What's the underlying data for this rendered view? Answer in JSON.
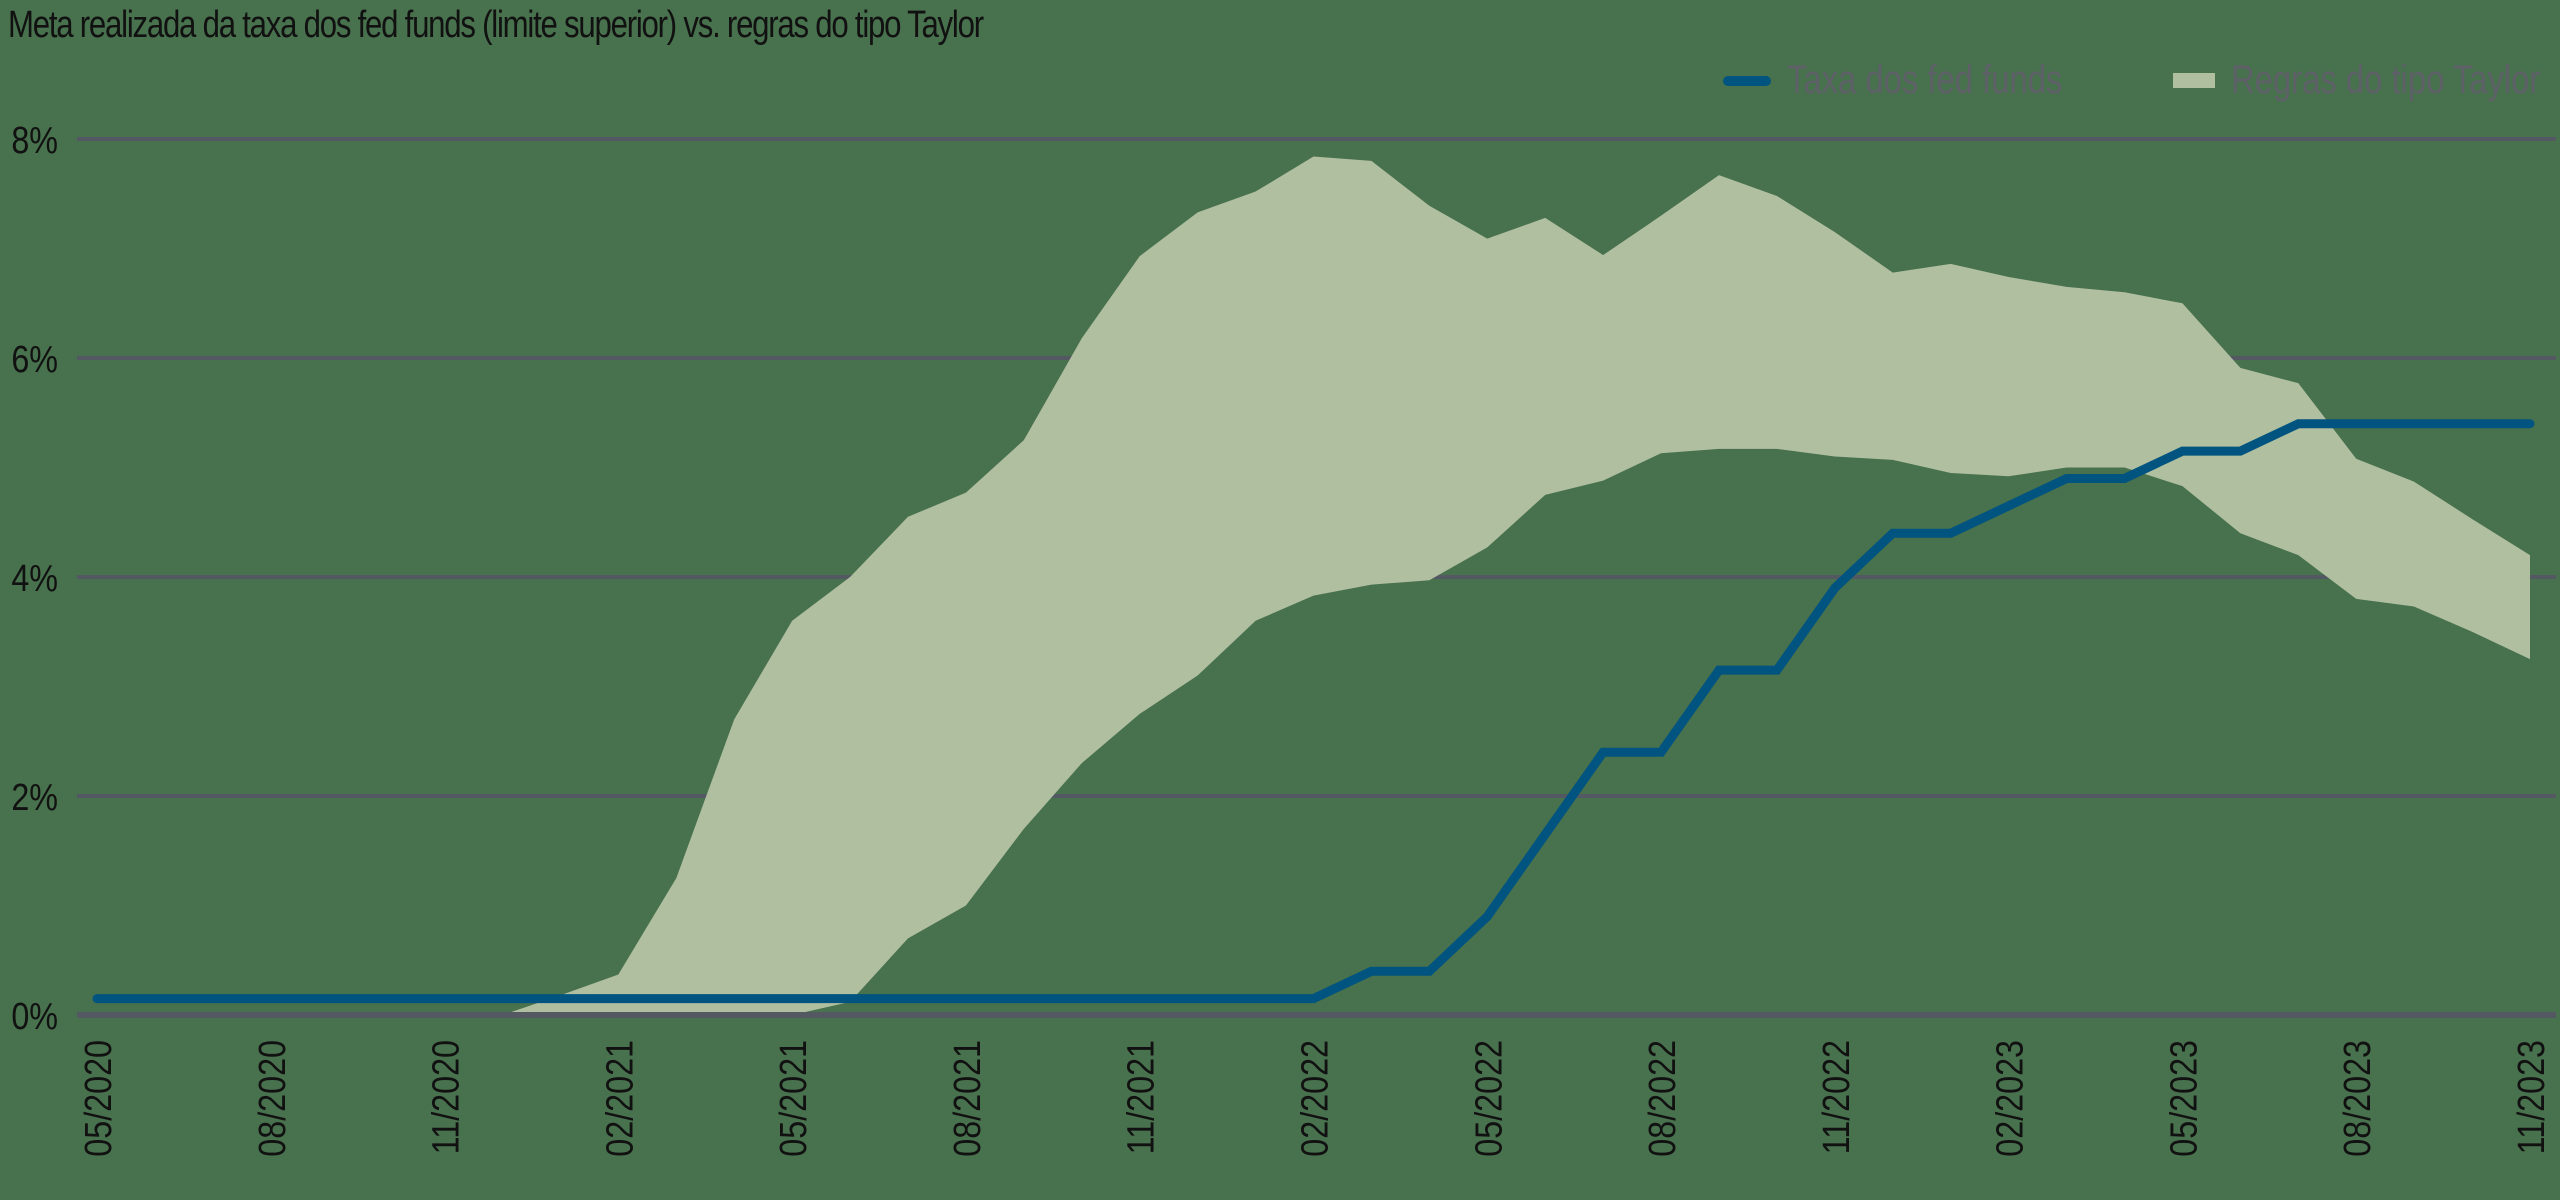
{
  "chart_data": {
    "type": "area",
    "title": "Meta realizada da taxa dos fed funds (limite superior) vs. regras do tipo Taylor",
    "xlabel": "",
    "ylabel": "",
    "ylim": [
      0,
      8
    ],
    "yticks": [
      "0%",
      "2%",
      "4%",
      "6%",
      "8%"
    ],
    "ytick_values": [
      0,
      2,
      4,
      6,
      8
    ],
    "grid": true,
    "legend_position": "top-right",
    "x": [
      "05/2020",
      "06/2020",
      "07/2020",
      "08/2020",
      "09/2020",
      "10/2020",
      "11/2020",
      "12/2020",
      "01/2021",
      "02/2021",
      "03/2021",
      "04/2021",
      "05/2021",
      "06/2021",
      "07/2021",
      "08/2021",
      "09/2021",
      "10/2021",
      "11/2021",
      "12/2021",
      "01/2022",
      "02/2022",
      "03/2022",
      "04/2022",
      "05/2022",
      "06/2022",
      "07/2022",
      "08/2022",
      "09/2022",
      "10/2022",
      "11/2022",
      "12/2022",
      "01/2023",
      "02/2023",
      "03/2023",
      "04/2023",
      "05/2023",
      "06/2023",
      "07/2023",
      "08/2023",
      "09/2023",
      "10/2023",
      "11/2023"
    ],
    "xtick_labels": [
      "05/2020",
      "08/2020",
      "11/2020",
      "02/2021",
      "05/2021",
      "08/2021",
      "11/2021",
      "02/2022",
      "05/2022",
      "08/2022",
      "11/2022",
      "02/2023",
      "05/2023",
      "08/2023",
      "11/2023"
    ],
    "series": [
      {
        "name": "Taxa dos fed funds",
        "kind": "line",
        "color": "#00547F",
        "values": [
          0.25,
          0.25,
          0.25,
          0.25,
          0.25,
          0.25,
          0.25,
          0.25,
          0.25,
          0.25,
          0.25,
          0.25,
          0.25,
          0.25,
          0.25,
          0.25,
          0.25,
          0.25,
          0.25,
          0.25,
          0.25,
          0.25,
          0.5,
          0.5,
          1.0,
          1.75,
          2.5,
          2.5,
          3.25,
          3.25,
          4.0,
          4.5,
          4.5,
          4.75,
          5.0,
          5.0,
          5.25,
          5.25,
          5.5,
          5.5,
          5.5,
          5.5,
          5.5
        ]
      },
      {
        "name": "Regras do tipo Taylor",
        "kind": "band",
        "color": "#B0BFA0",
        "upper": [
          null,
          null,
          null,
          null,
          null,
          null,
          null,
          0.0,
          0.18,
          0.37,
          1.25,
          2.7,
          3.6,
          4.0,
          4.55,
          4.77,
          5.25,
          6.18,
          6.93,
          7.33,
          7.52,
          7.84,
          7.8,
          7.39,
          7.09,
          7.28,
          6.94,
          7.3,
          7.67,
          7.48,
          7.15,
          6.78,
          6.86,
          6.74,
          6.65,
          6.6,
          6.5,
          5.91,
          5.77,
          5.08,
          4.87,
          4.53,
          4.2
        ],
        "lower": [
          null,
          null,
          null,
          null,
          null,
          null,
          null,
          0.0,
          0.0,
          0.0,
          0.0,
          0.0,
          0.0,
          0.12,
          0.7,
          1.0,
          1.7,
          2.3,
          2.75,
          3.1,
          3.6,
          3.83,
          3.93,
          3.97,
          4.27,
          4.75,
          4.88,
          5.13,
          5.17,
          5.17,
          5.1,
          5.07,
          4.95,
          4.92,
          5.0,
          5.0,
          4.83,
          4.4,
          4.2,
          3.8,
          3.73,
          3.5,
          3.25
        ]
      }
    ]
  },
  "title": "Meta realizada da taxa dos fed funds (limite superior) vs. regras do tipo Taylor",
  "legend": {
    "items": [
      {
        "label": "Taxa dos fed funds",
        "icon": "line-swatch",
        "color": "#00547F"
      },
      {
        "label": "Regras do tipo Taylor",
        "icon": "area-swatch",
        "color": "#B0BFA0"
      }
    ]
  },
  "colors": {
    "background": "#48714D",
    "gridline": "#545863",
    "legend_text": "#5E6068",
    "tick_text": "#111111"
  }
}
